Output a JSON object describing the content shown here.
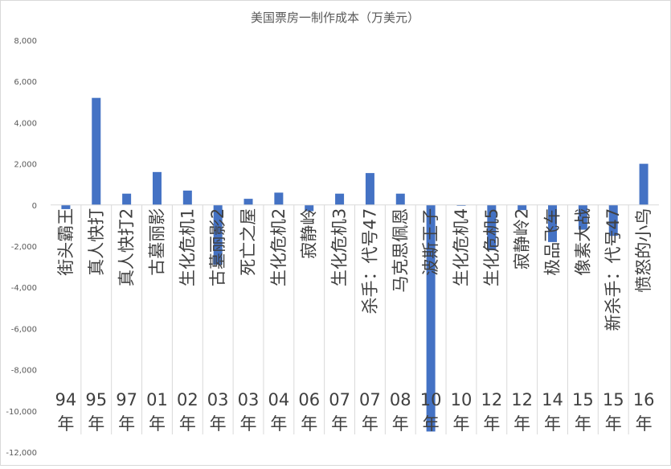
{
  "chart_data": {
    "type": "bar",
    "title": "美国票房一制作成本（万美元）",
    "ylim": [
      -12000,
      8000
    ],
    "yticks": [
      "8,000",
      "6,000",
      "4,000",
      "2,000",
      "0",
      "-2,000",
      "-4,000",
      "-6,000",
      "-8,000",
      "-10,000",
      "-12,000"
    ],
    "ytick_values": [
      8000,
      6000,
      4000,
      2000,
      0,
      -2000,
      -4000,
      -6000,
      -8000,
      -10000,
      -12000
    ],
    "gridlines": false,
    "legend": "none",
    "bar_color": "#4472C4",
    "categories": [
      {
        "name": "街头霸王",
        "year": "94年"
      },
      {
        "name": "真人快打",
        "year": "95年"
      },
      {
        "name": "真人快打2",
        "year": "97年"
      },
      {
        "name": "古墓丽影",
        "year": "01年"
      },
      {
        "name": "生化危机1",
        "year": "02年"
      },
      {
        "name": "古墓丽影2",
        "year": "03年"
      },
      {
        "name": "死亡之屋",
        "year": "03年"
      },
      {
        "name": "生化危机2",
        "year": "04年"
      },
      {
        "name": "寂静岭",
        "year": "06年"
      },
      {
        "name": "生化危机3",
        "year": "07年"
      },
      {
        "name": "杀手：代号47",
        "year": "07年"
      },
      {
        "name": "马克思佩恩",
        "year": "08年"
      },
      {
        "name": "波斯王子",
        "year": "10年"
      },
      {
        "name": "生化危机4",
        "year": "10年"
      },
      {
        "name": "生化危机5",
        "year": "12年"
      },
      {
        "name": "寂静岭2",
        "year": "12年"
      },
      {
        "name": "极品飞车",
        "year": "14年"
      },
      {
        "name": "像素大战",
        "year": "15年"
      },
      {
        "name": "新杀手：代号47",
        "year": "15年"
      },
      {
        "name": "愤怒的小鸟",
        "year": "16年"
      }
    ],
    "values": [
      -200,
      5200,
      550,
      1600,
      700,
      -2900,
      300,
      600,
      -300,
      550,
      1550,
      550,
      -11000,
      -10,
      -2200,
      -250,
      -1800,
      -1200,
      -1500,
      2000
    ]
  }
}
